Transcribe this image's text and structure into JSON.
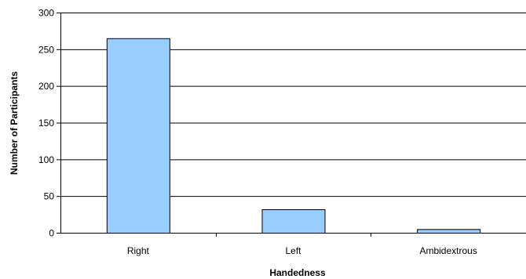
{
  "chart_data": {
    "type": "bar",
    "title": "",
    "xlabel": "Handedness",
    "ylabel": "Number of Participants",
    "categories": [
      "Right",
      "Left",
      "Ambidextrous"
    ],
    "values": [
      265,
      32,
      5
    ],
    "ylim": [
      0,
      300
    ],
    "yticks": [
      "0",
      "50",
      "100",
      "150",
      "200",
      "250",
      "300"
    ],
    "grid": true,
    "legend": "none",
    "bar_color": "#99ccff",
    "bar_edge_color": "#000000",
    "grid_color": "#000000"
  }
}
